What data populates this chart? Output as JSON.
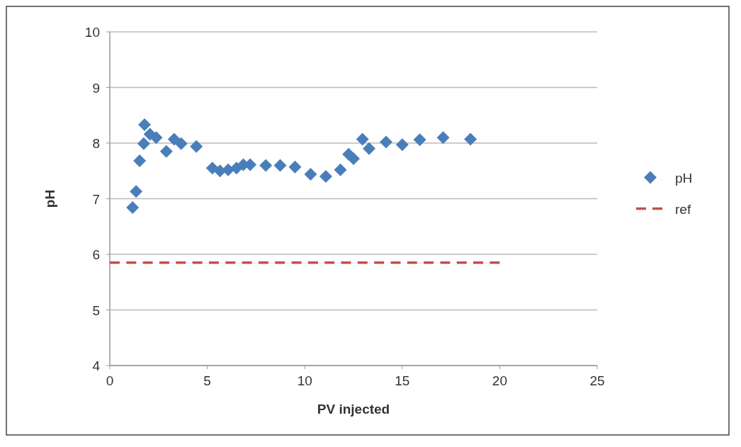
{
  "chart_data": {
    "type": "scatter",
    "xlabel": "PV injected",
    "ylabel": "pH",
    "xlim": [
      0,
      25
    ],
    "xticks": [
      0,
      5,
      10,
      15,
      20,
      25
    ],
    "ylim": [
      4,
      10
    ],
    "yticks": [
      4,
      5,
      6,
      7,
      8,
      9,
      10
    ],
    "grid": "y",
    "legend": "right",
    "marker": "diamond",
    "series": [
      {
        "name": "pH",
        "color": "#4a7ebb",
        "x": [
          1.17,
          1.35,
          1.53,
          1.74,
          1.78,
          2.06,
          2.38,
          2.9,
          3.3,
          3.66,
          4.44,
          5.26,
          5.65,
          6.07,
          6.5,
          6.85,
          7.2,
          8.0,
          8.74,
          9.5,
          10.3,
          11.08,
          11.83,
          12.25,
          12.5,
          12.96,
          13.3,
          14.17,
          15.0,
          15.9,
          17.1,
          18.5
        ],
        "values": [
          6.84,
          7.13,
          7.68,
          7.99,
          8.33,
          8.16,
          8.1,
          7.85,
          8.07,
          7.99,
          7.94,
          7.55,
          7.5,
          7.52,
          7.55,
          7.61,
          7.61,
          7.6,
          7.6,
          7.57,
          7.44,
          7.4,
          7.52,
          7.8,
          7.72,
          8.07,
          7.9,
          8.02,
          7.97,
          8.06,
          8.1,
          8.07
        ]
      },
      {
        "name": "ref",
        "color": "#c0504d",
        "type": "line",
        "line_style": "dashed",
        "marker": "none",
        "x": [
          0,
          20
        ],
        "values": [
          5.85,
          5.85
        ]
      }
    ]
  }
}
